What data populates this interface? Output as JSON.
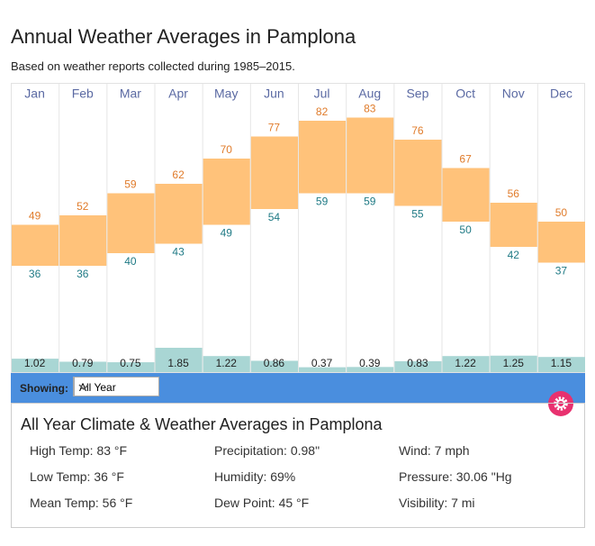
{
  "title": "Annual Weather Averages in Pamplona",
  "subtitle": "Based on weather reports collected during 1985–2015.",
  "chart_data": {
    "type": "range-bar",
    "categories": [
      "Jan",
      "Feb",
      "Mar",
      "Apr",
      "May",
      "Jun",
      "Jul",
      "Aug",
      "Sep",
      "Oct",
      "Nov",
      "Dec"
    ],
    "high": [
      49,
      52,
      59,
      62,
      70,
      77,
      82,
      83,
      76,
      67,
      56,
      50
    ],
    "low": [
      36,
      36,
      40,
      43,
      49,
      54,
      59,
      59,
      55,
      50,
      42,
      37
    ],
    "precipitation": [
      1.02,
      0.79,
      0.75,
      1.85,
      1.22,
      0.86,
      0.37,
      0.39,
      0.83,
      1.22,
      1.25,
      1.15
    ],
    "ylim": [
      0,
      92
    ],
    "bar_color": "#ffc27a",
    "high_label_color": "#e07b2a",
    "low_label_color": "#1f7a85",
    "precip_color": "#a9d6d4"
  },
  "controls": {
    "showing_label": "Showing:",
    "selected": "All Year"
  },
  "summary": {
    "title": "All Year Climate & Weather Averages in Pamplona",
    "stats": [
      "High Temp: 83 °F",
      "Precipitation: 0.98\"",
      "Wind: 7 mph",
      "Low Temp: 36 °F",
      "Humidity: 69%",
      "Pressure: 30.06 \"Hg",
      "Mean Temp: 56 °F",
      "Dew Point: 45 °F",
      "Visibility: 7 mi"
    ]
  }
}
